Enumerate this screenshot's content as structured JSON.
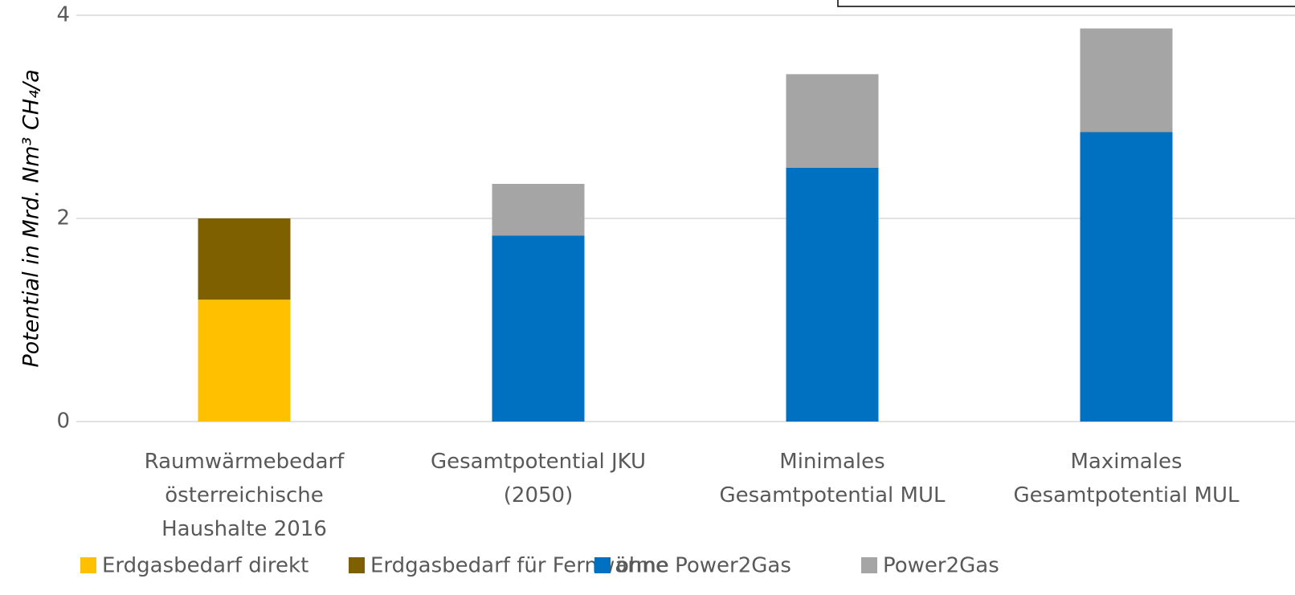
{
  "chart_data": {
    "type": "bar",
    "stacked": true,
    "y_label": "Potential in Mrd. Nm³ CH₄/a",
    "categories": [
      "Raumwärmebedarf\nösterreichische\nHaushalte 2016",
      "Gesamtpotential JKU\n(2050)",
      "Minimales\nGesamtpotential MUL",
      "Maximales\nGesamtpotential MUL"
    ],
    "series": [
      {
        "name": "Erdgasbedarf direkt",
        "color": "#ffc000",
        "values": [
          1.2,
          null,
          null,
          null
        ]
      },
      {
        "name": "Erdgasbedarf für Fernwärme",
        "color": "#7f6000",
        "values": [
          0.8,
          null,
          null,
          null
        ]
      },
      {
        "name": "ohne Power2Gas",
        "color": "#0070c0",
        "values": [
          null,
          1.83,
          2.5,
          2.85
        ]
      },
      {
        "name": "Power2Gas",
        "color": "#a5a5a5",
        "values": [
          null,
          0.51,
          0.92,
          1.02
        ]
      }
    ],
    "ylim": [
      0,
      4
    ],
    "yticks": [
      0,
      2,
      4
    ],
    "grid": true,
    "legend": "bottom"
  }
}
